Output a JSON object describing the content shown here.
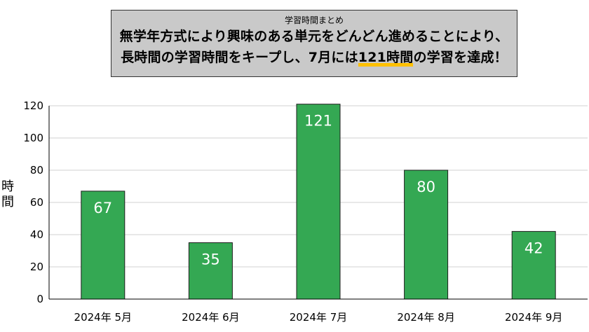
{
  "title": {
    "small": "学習時間まとめ",
    "line1": "無学年方式により興味のある単元をどんどん進めることにより、",
    "line2_pre": "長時間の学習時間をキープし、7月には",
    "line2_highlight": "121時間",
    "line2_post": "の学習を達成！",
    "highlight_color": "#ffc000"
  },
  "chart_data": {
    "type": "bar",
    "categories": [
      "2024年 5月",
      "2024年 6月",
      "2024年 7月",
      "2024年 8月",
      "2024年 9月"
    ],
    "values": [
      67,
      35,
      121,
      80,
      42
    ],
    "ylabel": "時間",
    "ylim": [
      0,
      120
    ],
    "yticks": [
      0,
      20,
      40,
      60,
      80,
      100,
      120
    ],
    "grid": true,
    "bar_color": "#34a853",
    "data_label_color": "#ffffff"
  }
}
